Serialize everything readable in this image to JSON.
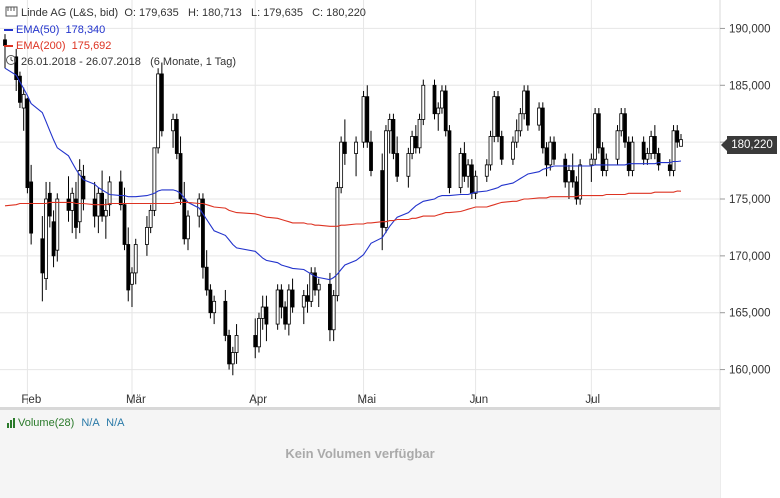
{
  "header": {
    "instrument": "Linde AG (L&S, bid)",
    "ohlc": "O: 179,635   H: 180,713   L: 179,635   C: 180,220",
    "period": "26.01.2018 - 26.07.2018",
    "period_detail": "(6 Monate, 1 Tag)"
  },
  "volume_panel": {
    "label": "Volume(28)",
    "value1": "N/A",
    "value2": "N/A",
    "message": "Kein Volumen verfügbar"
  },
  "last_price_tag": "180,220",
  "colors": {
    "ema50": "#2233cc",
    "ema200": "#dd3322",
    "candle": "#000000",
    "grid": "#e6e6e6",
    "volume": "#2a7a2a"
  },
  "chart_data": {
    "type": "candlestick",
    "y_range": [
      157.5,
      192.5
    ],
    "y_ticks": [
      160000,
      165000,
      170000,
      175000,
      180000,
      185000,
      190000
    ],
    "y_tick_labels": [
      "160,000",
      "165,000",
      "170,000",
      "175,000",
      "180,000",
      "185,000",
      "190,000"
    ],
    "x_ticks": [
      {
        "label": "Feb",
        "date": "2018-02-01"
      },
      {
        "label": "Mär",
        "date": "2018-03-01"
      },
      {
        "label": "Apr",
        "date": "2018-04-03"
      },
      {
        "label": "Mai",
        "date": "2018-05-02"
      },
      {
        "label": "Jun",
        "date": "2018-06-01"
      },
      {
        "label": "Jul",
        "date": "2018-07-02"
      }
    ],
    "dates": [
      "2018-01-26",
      "2018-01-29",
      "2018-01-30",
      "2018-01-31",
      "2018-02-01",
      "2018-02-02",
      "2018-02-05",
      "2018-02-06",
      "2018-02-07",
      "2018-02-08",
      "2018-02-09",
      "2018-02-12",
      "2018-02-13",
      "2018-02-14",
      "2018-02-15",
      "2018-02-16",
      "2018-02-19",
      "2018-02-20",
      "2018-02-21",
      "2018-02-22",
      "2018-02-23",
      "2018-02-26",
      "2018-02-27",
      "2018-02-28",
      "2018-03-01",
      "2018-03-02",
      "2018-03-05",
      "2018-03-06",
      "2018-03-07",
      "2018-03-08",
      "2018-03-09",
      "2018-03-12",
      "2018-03-13",
      "2018-03-14",
      "2018-03-15",
      "2018-03-16",
      "2018-03-19",
      "2018-03-20",
      "2018-03-21",
      "2018-03-22",
      "2018-03-23",
      "2018-03-26",
      "2018-03-27",
      "2018-03-28",
      "2018-03-29",
      "2018-04-03",
      "2018-04-04",
      "2018-04-05",
      "2018-04-06",
      "2018-04-09",
      "2018-04-10",
      "2018-04-11",
      "2018-04-12",
      "2018-04-13",
      "2018-04-16",
      "2018-04-17",
      "2018-04-18",
      "2018-04-19",
      "2018-04-20",
      "2018-04-23",
      "2018-04-24",
      "2018-04-25",
      "2018-04-26",
      "2018-04-27",
      "2018-04-30",
      "2018-05-02",
      "2018-05-03",
      "2018-05-04",
      "2018-05-07",
      "2018-05-08",
      "2018-05-09",
      "2018-05-10",
      "2018-05-11",
      "2018-05-14",
      "2018-05-15",
      "2018-05-16",
      "2018-05-17",
      "2018-05-18",
      "2018-05-21",
      "2018-05-22",
      "2018-05-23",
      "2018-05-24",
      "2018-05-25",
      "2018-05-28",
      "2018-05-29",
      "2018-05-30",
      "2018-05-31",
      "2018-06-01",
      "2018-06-04",
      "2018-06-05",
      "2018-06-06",
      "2018-06-07",
      "2018-06-08",
      "2018-06-11",
      "2018-06-12",
      "2018-06-13",
      "2018-06-14",
      "2018-06-15",
      "2018-06-18",
      "2018-06-19",
      "2018-06-20",
      "2018-06-21",
      "2018-06-22",
      "2018-06-25",
      "2018-06-26",
      "2018-06-27",
      "2018-06-28",
      "2018-06-29",
      "2018-07-02",
      "2018-07-03",
      "2018-07-04",
      "2018-07-05",
      "2018-07-06",
      "2018-07-09",
      "2018-07-10",
      "2018-07-11",
      "2018-07-12",
      "2018-07-13",
      "2018-07-16",
      "2018-07-17",
      "2018-07-18",
      "2018-07-19",
      "2018-07-20",
      "2018-07-23",
      "2018-07-24",
      "2018-07-25",
      "2018-07-26"
    ],
    "ohlc": [
      [
        189.0,
        189.5,
        186.5,
        188.5
      ],
      [
        187.5,
        188.2,
        184.5,
        185.5
      ],
      [
        185.8,
        186.2,
        183.0,
        183.5
      ],
      [
        183.0,
        184.8,
        181.0,
        184.2
      ],
      [
        183.8,
        183.9,
        175.5,
        176.0
      ],
      [
        176.5,
        178.0,
        171.0,
        172.0
      ],
      [
        171.5,
        173.5,
        166.0,
        168.5
      ],
      [
        168.0,
        176.5,
        167.0,
        175.0
      ],
      [
        175.5,
        176.5,
        172.5,
        173.5
      ],
      [
        173.0,
        174.0,
        169.0,
        170.0
      ],
      [
        170.5,
        175.5,
        169.5,
        175.0
      ],
      [
        175.0,
        177.0,
        173.0,
        174.0
      ],
      [
        174.0,
        176.0,
        172.0,
        175.5
      ],
      [
        175.0,
        176.5,
        171.5,
        172.5
      ],
      [
        173.0,
        178.5,
        172.0,
        177.5
      ],
      [
        177.0,
        178.0,
        174.0,
        175.0
      ],
      [
        175.0,
        176.5,
        172.5,
        173.5
      ],
      [
        173.5,
        176.0,
        172.0,
        175.5
      ],
      [
        175.5,
        177.5,
        173.0,
        173.5
      ],
      [
        173.5,
        175.0,
        171.5,
        174.0
      ],
      [
        174.5,
        177.0,
        173.5,
        176.5
      ],
      [
        176.5,
        177.5,
        174.0,
        174.5
      ],
      [
        174.5,
        176.0,
        170.5,
        171.0
      ],
      [
        171.0,
        172.5,
        166.0,
        167.0
      ],
      [
        167.5,
        169.0,
        165.5,
        168.5
      ],
      [
        168.5,
        171.5,
        167.5,
        171.0
      ],
      [
        171.0,
        173.5,
        170.0,
        172.5
      ],
      [
        172.5,
        174.5,
        172.0,
        174.0
      ],
      [
        174.0,
        179.5,
        173.5,
        179.5
      ],
      [
        179.5,
        186.5,
        179.0,
        186.0
      ],
      [
        186.0,
        187.0,
        180.5,
        181.0
      ],
      [
        181.0,
        182.5,
        179.5,
        182.0
      ],
      [
        182.0,
        182.5,
        178.5,
        179.0
      ],
      [
        179.0,
        180.5,
        174.5,
        175.0
      ],
      [
        175.0,
        176.5,
        171.0,
        171.5
      ],
      [
        171.5,
        174.0,
        170.5,
        173.5
      ],
      [
        173.5,
        175.5,
        172.5,
        175.0
      ],
      [
        175.0,
        175.5,
        168.0,
        169.0
      ],
      [
        169.0,
        170.5,
        166.5,
        167.0
      ],
      [
        167.0,
        167.5,
        164.5,
        165.0
      ],
      [
        165.0,
        166.5,
        164.0,
        166.0
      ],
      [
        166.0,
        167.0,
        162.5,
        163.0
      ],
      [
        163.0,
        163.5,
        160.0,
        160.5
      ],
      [
        160.5,
        162.0,
        159.5,
        161.5
      ],
      [
        161.5,
        164.0,
        160.5,
        163.0
      ],
      [
        163.0,
        164.5,
        161.0,
        162.0
      ],
      [
        162.0,
        165.0,
        161.5,
        164.5
      ],
      [
        164.5,
        166.5,
        163.5,
        165.5
      ],
      [
        165.5,
        166.5,
        162.5,
        164.0
      ],
      [
        164.0,
        167.5,
        163.5,
        167.0
      ],
      [
        167.0,
        167.5,
        164.5,
        165.5
      ],
      [
        165.5,
        166.0,
        163.5,
        164.0
      ],
      [
        164.0,
        167.5,
        163.0,
        167.0
      ],
      [
        167.0,
        168.0,
        165.0,
        165.5
      ],
      [
        165.5,
        167.0,
        164.0,
        166.5
      ],
      [
        166.5,
        167.5,
        165.0,
        166.0
      ],
      [
        166.0,
        169.0,
        165.5,
        168.5
      ],
      [
        168.5,
        169.0,
        166.5,
        167.0
      ],
      [
        167.0,
        168.0,
        165.5,
        167.5
      ],
      [
        167.5,
        168.5,
        162.5,
        163.5
      ],
      [
        163.5,
        167.0,
        162.5,
        166.5
      ],
      [
        166.5,
        176.5,
        166.0,
        176.0
      ],
      [
        176.0,
        180.5,
        175.5,
        180.0
      ],
      [
        180.0,
        182.0,
        178.0,
        179.0
      ],
      [
        179.0,
        180.5,
        177.0,
        180.0
      ],
      [
        180.0,
        184.5,
        179.5,
        184.0
      ],
      [
        184.0,
        185.0,
        179.5,
        180.0
      ],
      [
        180.0,
        181.0,
        177.0,
        177.5
      ],
      [
        177.5,
        179.0,
        170.5,
        172.5
      ],
      [
        172.5,
        181.5,
        172.0,
        181.0
      ],
      [
        181.0,
        182.5,
        179.0,
        182.0
      ],
      [
        182.0,
        182.5,
        178.5,
        179.0
      ],
      [
        179.0,
        180.5,
        176.5,
        177.0
      ],
      [
        177.0,
        179.5,
        176.0,
        179.0
      ],
      [
        179.0,
        181.0,
        178.5,
        180.5
      ],
      [
        180.5,
        181.5,
        179.0,
        179.5
      ],
      [
        179.5,
        182.5,
        179.0,
        182.0
      ],
      [
        182.0,
        185.5,
        181.5,
        185.0
      ],
      [
        185.0,
        185.5,
        182.0,
        182.5
      ],
      [
        182.5,
        183.5,
        181.0,
        183.0
      ],
      [
        183.0,
        185.0,
        182.5,
        184.5
      ],
      [
        184.5,
        185.0,
        180.5,
        181.0
      ],
      [
        181.0,
        181.5,
        175.5,
        176.0
      ],
      [
        176.0,
        179.5,
        175.5,
        179.0
      ],
      [
        179.0,
        180.0,
        176.5,
        177.0
      ],
      [
        177.0,
        178.5,
        176.0,
        178.0
      ],
      [
        178.0,
        178.5,
        175.0,
        175.5
      ],
      [
        175.5,
        177.5,
        175.0,
        177.0
      ],
      [
        177.0,
        178.5,
        176.5,
        178.0
      ],
      [
        178.0,
        181.0,
        177.5,
        180.5
      ],
      [
        180.5,
        184.5,
        180.0,
        184.0
      ],
      [
        184.0,
        184.5,
        180.0,
        180.5
      ],
      [
        180.5,
        181.0,
        178.0,
        178.5
      ],
      [
        178.5,
        180.5,
        178.0,
        180.0
      ],
      [
        180.0,
        182.0,
        179.5,
        181.0
      ],
      [
        181.0,
        183.0,
        180.5,
        182.5
      ],
      [
        182.5,
        185.0,
        182.0,
        184.5
      ],
      [
        184.5,
        185.0,
        181.0,
        181.5
      ],
      [
        181.5,
        183.5,
        181.0,
        183.0
      ],
      [
        183.0,
        183.5,
        179.0,
        179.5
      ],
      [
        179.5,
        180.0,
        177.0,
        178.0
      ],
      [
        178.0,
        180.5,
        177.5,
        180.0
      ],
      [
        180.0,
        180.5,
        178.0,
        178.5
      ],
      [
        178.5,
        179.0,
        176.0,
        176.5
      ],
      [
        176.5,
        178.0,
        175.0,
        177.5
      ],
      [
        177.5,
        179.0,
        176.0,
        176.5
      ],
      [
        176.5,
        177.0,
        174.5,
        175.0
      ],
      [
        175.0,
        178.5,
        174.5,
        178.0
      ],
      [
        178.0,
        179.0,
        176.5,
        178.5
      ],
      [
        178.5,
        183.0,
        178.0,
        182.5
      ],
      [
        182.5,
        183.0,
        179.0,
        179.5
      ],
      [
        179.5,
        180.0,
        177.0,
        177.5
      ],
      [
        177.5,
        179.0,
        177.0,
        178.5
      ],
      [
        178.5,
        181.5,
        178.0,
        181.0
      ],
      [
        181.0,
        183.0,
        180.5,
        182.5
      ],
      [
        182.5,
        183.0,
        179.5,
        180.0
      ],
      [
        180.0,
        180.5,
        177.0,
        177.5
      ],
      [
        177.5,
        180.5,
        177.0,
        180.0
      ],
      [
        180.0,
        180.5,
        178.0,
        178.5
      ],
      [
        178.5,
        179.5,
        178.0,
        179.0
      ],
      [
        179.0,
        181.0,
        178.5,
        180.5
      ],
      [
        180.5,
        181.5,
        178.5,
        179.0
      ],
      [
        179.0,
        179.5,
        177.5,
        178.0
      ],
      [
        178.0,
        178.5,
        177.0,
        177.5
      ],
      [
        177.5,
        181.5,
        177.0,
        181.0
      ],
      [
        181.0,
        181.5,
        179.5,
        180.0
      ],
      [
        179.635,
        180.713,
        179.635,
        180.22
      ]
    ],
    "series": [
      {
        "name": "EMA(50)",
        "last_value": "178,340",
        "color": "#2233cc",
        "values": [
          186.5,
          185.9,
          185.3,
          184.7,
          184.1,
          183.4,
          182.6,
          181.8,
          181.0,
          180.2,
          179.5,
          178.8,
          178.2,
          177.6,
          177.1,
          176.7,
          176.3,
          176.0,
          175.8,
          175.6,
          175.4,
          175.3,
          175.3,
          175.2,
          175.2,
          175.2,
          175.3,
          175.4,
          175.5,
          175.7,
          175.8,
          175.8,
          175.7,
          175.5,
          175.1,
          174.7,
          174.2,
          173.7,
          173.2,
          172.7,
          172.2,
          171.8,
          171.4,
          171.0,
          170.7,
          170.4,
          170.1,
          169.8,
          169.6,
          169.4,
          169.2,
          169.1,
          169.0,
          168.9,
          168.8,
          168.6,
          168.4,
          168.2,
          168.1,
          167.9,
          168.1,
          168.4,
          168.8,
          169.2,
          169.6,
          170.1,
          170.6,
          171.1,
          171.6,
          172.1,
          172.6,
          173.0,
          173.4,
          173.8,
          174.1,
          174.4,
          174.6,
          174.8,
          175.0,
          175.2,
          175.3,
          175.3,
          175.3,
          175.4,
          175.4,
          175.4,
          175.5,
          175.6,
          175.7,
          175.8,
          175.9,
          176.0,
          176.2,
          176.4,
          176.6,
          176.8,
          177.0,
          177.2,
          177.4,
          177.6,
          177.7,
          177.8,
          177.9,
          177.9,
          177.9,
          177.9,
          177.9,
          177.9,
          177.9,
          178.0,
          178.0,
          178.0,
          178.0,
          178.0,
          178.0,
          178.0,
          178.1,
          178.1,
          178.1,
          178.1,
          178.1,
          178.1,
          178.2,
          178.2,
          178.3,
          178.3,
          178.34
        ]
      },
      {
        "name": "EMA(200)",
        "last_value": "175,692",
        "color": "#dd3322",
        "values": [
          174.4,
          174.5,
          174.6,
          174.6,
          174.6,
          174.6,
          174.6,
          174.6,
          174.7,
          174.7,
          174.7,
          174.7,
          174.7,
          174.6,
          174.6,
          174.6,
          174.5,
          174.5,
          174.5,
          174.5,
          174.6,
          174.6,
          174.6,
          174.6,
          174.6,
          174.6,
          174.6,
          174.6,
          174.6,
          174.6,
          174.6,
          174.6,
          174.7,
          174.7,
          174.7,
          174.7,
          174.6,
          174.6,
          174.5,
          174.4,
          174.3,
          174.2,
          174.0,
          173.9,
          173.8,
          173.7,
          173.6,
          173.5,
          173.4,
          173.3,
          173.2,
          173.1,
          173.0,
          172.9,
          172.9,
          172.8,
          172.8,
          172.7,
          172.7,
          172.6,
          172.6,
          172.6,
          172.7,
          172.7,
          172.8,
          172.8,
          172.9,
          172.9,
          173.0,
          173.0,
          173.1,
          173.1,
          173.2,
          173.2,
          173.3,
          173.3,
          173.4,
          173.5,
          173.5,
          173.6,
          173.7,
          173.8,
          173.8,
          173.9,
          174.0,
          174.1,
          174.2,
          174.3,
          174.3,
          174.4,
          174.5,
          174.6,
          174.7,
          174.8,
          174.8,
          174.9,
          175.0,
          175.0,
          175.1,
          175.1,
          175.1,
          175.2,
          175.2,
          175.2,
          175.2,
          175.2,
          175.2,
          175.3,
          175.3,
          175.3,
          175.3,
          175.3,
          175.4,
          175.4,
          175.4,
          175.4,
          175.5,
          175.5,
          175.5,
          175.5,
          175.5,
          175.6,
          175.6,
          175.6,
          175.6,
          175.7,
          175.69
        ]
      }
    ]
  }
}
